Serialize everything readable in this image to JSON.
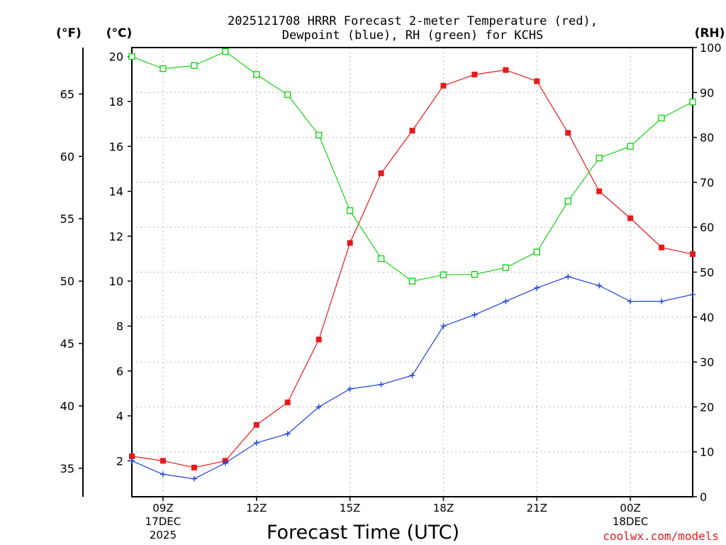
{
  "chart_data": {
    "type": "line",
    "title_line1": "2025121708 HRRR Forecast 2-meter Temperature (red),",
    "title_line2": "Dewpoint (blue), RH (green) for KCHS",
    "xlabel": "Forecast Time (UTC)",
    "credit": "coolwx.com/models",
    "left_axis_label": "(°C)",
    "far_left_axis_label": "(°F)",
    "right_axis_label": "(RH)",
    "hours": [
      8,
      9,
      10,
      11,
      12,
      13,
      14,
      15,
      16,
      17,
      18,
      19,
      20,
      21,
      22,
      23,
      24,
      25,
      26
    ],
    "ylim_c": [
      0.4,
      20.4
    ],
    "ylim_rh": [
      0,
      100
    ],
    "yticks_c": [
      "2",
      "4",
      "6",
      "8",
      "10",
      "12",
      "14",
      "16",
      "18",
      "20"
    ],
    "yticks_f": [
      "35",
      "40",
      "45",
      "50",
      "55",
      "60",
      "65"
    ],
    "yticks_rh": [
      "0",
      "10",
      "20",
      "30",
      "40",
      "50",
      "60",
      "70",
      "80",
      "90",
      "100"
    ],
    "x_ticks": [
      {
        "hour": 9,
        "lines": [
          "09Z",
          "17DEC",
          "2025"
        ]
      },
      {
        "hour": 12,
        "lines": [
          "12Z"
        ]
      },
      {
        "hour": 15,
        "lines": [
          "15Z"
        ]
      },
      {
        "hour": 18,
        "lines": [
          "18Z"
        ]
      },
      {
        "hour": 21,
        "lines": [
          "21Z"
        ]
      },
      {
        "hour": 24,
        "lines": [
          "00Z",
          "18DEC"
        ]
      }
    ],
    "series": [
      {
        "name": "2-meter Temperature",
        "unit": "C",
        "color": "#e41a1c",
        "marker": "filled-square",
        "values": [
          2.2,
          2.0,
          1.7,
          2.0,
          3.6,
          4.6,
          7.4,
          11.7,
          14.8,
          16.7,
          18.7,
          19.2,
          19.4,
          18.9,
          16.6,
          14.0,
          12.8,
          11.5,
          11.2
        ]
      },
      {
        "name": "Dewpoint",
        "unit": "C",
        "color": "#1f3fdf",
        "marker": "plus",
        "values": [
          2.0,
          1.4,
          1.2,
          1.9,
          2.8,
          3.2,
          4.4,
          5.2,
          5.4,
          5.8,
          8.0,
          8.5,
          9.1,
          9.7,
          10.2,
          9.8,
          9.1,
          9.1,
          9.4
        ]
      },
      {
        "name": "RH",
        "unit": "%",
        "color": "#19d119",
        "marker": "open-square",
        "values": [
          98.0,
          95.3,
          96.0,
          99.1,
          94.0,
          89.5,
          80.5,
          63.7,
          53.0,
          48.0,
          49.4,
          49.5,
          51.0,
          54.5,
          65.8,
          75.4,
          78.0,
          84.3,
          87.9
        ]
      }
    ]
  }
}
